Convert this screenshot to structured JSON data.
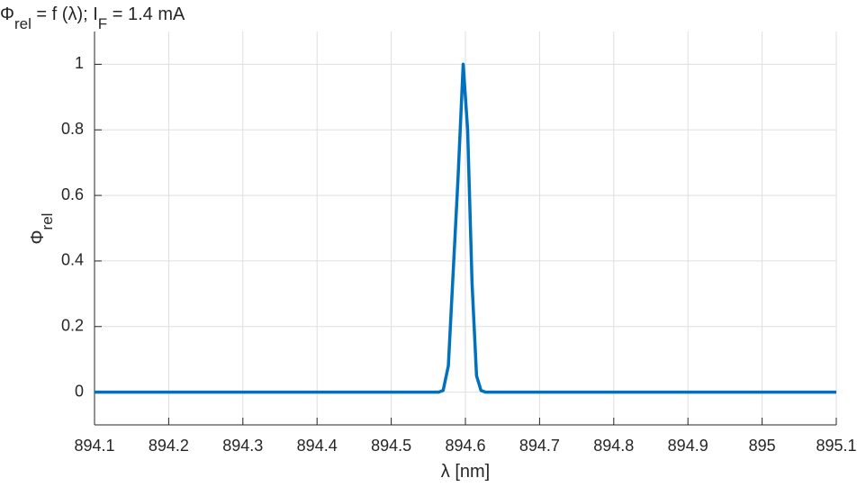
{
  "chart_data": {
    "type": "line",
    "title": [
      {
        "text": "Φ"
      },
      {
        "text": "rel",
        "sub": true
      },
      {
        "text": " = f (λ); I"
      },
      {
        "text": "F",
        "sub": true
      },
      {
        "text": " = 1.4 mA"
      }
    ],
    "x_label": "λ [nm]",
    "y_label": [
      {
        "text": "Φ"
      },
      {
        "text": "rel",
        "sub": true
      }
    ],
    "series": [
      {
        "color": "#0072bd",
        "x": [
          894.1,
          894.564,
          894.57,
          894.577,
          894.59,
          894.597,
          894.603,
          894.609,
          894.615,
          894.621,
          894.627,
          895.1
        ],
        "values": [
          0,
          0,
          0.005,
          0.08,
          0.65,
          1,
          0.8,
          0.33,
          0.05,
          0.005,
          0,
          0
        ]
      }
    ],
    "xlim": [
      894.1,
      895.1
    ],
    "xticks": [
      894.1,
      894.2,
      894.3,
      894.4,
      894.5,
      894.6,
      894.7,
      894.8,
      894.9,
      895,
      895.1
    ],
    "ylim": [
      -0.1,
      1.1
    ],
    "yticks": [
      0,
      0.2,
      0.4,
      0.6,
      0.8,
      1
    ],
    "grid": true
  }
}
